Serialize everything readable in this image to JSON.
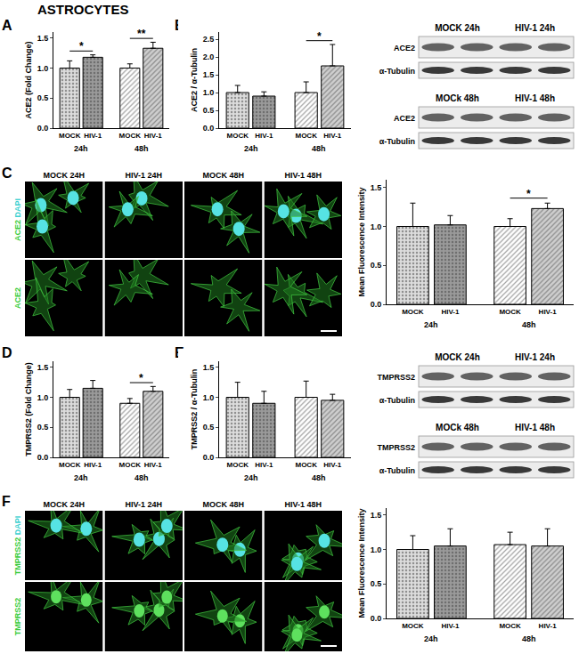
{
  "figure_title": "ASTROCYTES",
  "chart_data": [
    {
      "panel": "A",
      "type": "bar",
      "y_label": "ACE2 (Fold Change)",
      "categories": [
        "MOCK",
        "HIV-1",
        "MOCK",
        "HIV-1"
      ],
      "groups": [
        "24h",
        "48h"
      ],
      "values": [
        1.0,
        1.18,
        1.0,
        1.33
      ],
      "errors": [
        0.12,
        0.04,
        0.07,
        0.1
      ],
      "colors": [
        "#dcdcdc",
        "#9a9a9a",
        "#ffffff",
        "#cfcfcf"
      ],
      "ylim": [
        0,
        1.6
      ],
      "yticks": [
        {
          "value": 0,
          "label": "0.0"
        },
        {
          "value": 0.5,
          "label": "0.5"
        },
        {
          "value": 1,
          "label": "1.0"
        },
        {
          "value": 1.5,
          "label": "1.5"
        }
      ],
      "significance": [
        {
          "bars": [
            0,
            1
          ],
          "label": "*"
        },
        {
          "bars": [
            2,
            3
          ],
          "label": "**"
        }
      ]
    },
    {
      "panel": "B",
      "type": "bar",
      "y_label": "ACE2 / α-Tubulin",
      "categories": [
        "MOCK",
        "HIV-1",
        "MOCK",
        "HIV-1"
      ],
      "groups": [
        "24h",
        "48h"
      ],
      "values": [
        1.0,
        0.9,
        1.0,
        1.75
      ],
      "errors": [
        0.2,
        0.12,
        0.3,
        0.6
      ],
      "colors": [
        "#dcdcdc",
        "#9a9a9a",
        "#ffffff",
        "#cfcfcf"
      ],
      "ylim": [
        0,
        2.7
      ],
      "yticks": [
        {
          "value": 0,
          "label": "0.0"
        },
        {
          "value": 0.5,
          "label": "0.5"
        },
        {
          "value": 1,
          "label": "1.0"
        },
        {
          "value": 1.5,
          "label": "1.5"
        },
        {
          "value": 2,
          "label": "2.0"
        },
        {
          "value": 2.5,
          "label": "2.5"
        }
      ],
      "significance": [
        {
          "bars": [
            2,
            3
          ],
          "label": "*"
        }
      ]
    },
    {
      "panel": "C",
      "type": "bar",
      "y_label": "Mean Fluorescence Intensity",
      "categories": [
        "MOCK",
        "HIV-1",
        "MOCK",
        "HIV-1"
      ],
      "groups": [
        "24h",
        "48h"
      ],
      "values": [
        1.0,
        1.02,
        1.0,
        1.23
      ],
      "errors": [
        0.3,
        0.12,
        0.1,
        0.07
      ],
      "colors": [
        "#dcdcdc",
        "#9a9a9a",
        "#ffffff",
        "#cfcfcf"
      ],
      "ylim": [
        0,
        1.6
      ],
      "yticks": [
        {
          "value": 0,
          "label": "0.0"
        },
        {
          "value": 0.5,
          "label": "0.5"
        },
        {
          "value": 1,
          "label": "1.0"
        },
        {
          "value": 1.5,
          "label": "1.5"
        }
      ],
      "significance": [
        {
          "bars": [
            2,
            3
          ],
          "label": "*"
        }
      ]
    },
    {
      "panel": "D",
      "type": "bar",
      "y_label": "TMPRSS2 (Fold Change)",
      "categories": [
        "MOCK",
        "HIV-1",
        "MOCK",
        "HIV-1"
      ],
      "groups": [
        "24h",
        "48h"
      ],
      "values": [
        1.0,
        1.15,
        0.9,
        1.1
      ],
      "errors": [
        0.13,
        0.13,
        0.08,
        0.08
      ],
      "colors": [
        "#dcdcdc",
        "#9a9a9a",
        "#ffffff",
        "#cfcfcf"
      ],
      "ylim": [
        0,
        1.6
      ],
      "yticks": [
        {
          "value": 0,
          "label": "0.0"
        },
        {
          "value": 0.5,
          "label": "0.5"
        },
        {
          "value": 1,
          "label": "1.0"
        },
        {
          "value": 1.5,
          "label": "1.5"
        }
      ],
      "significance": [
        {
          "bars": [
            2,
            3
          ],
          "label": "*"
        }
      ]
    },
    {
      "panel": "E",
      "type": "bar",
      "y_label": "TMPRSS2 / α-Tubulin",
      "categories": [
        "MOCK",
        "HIV-1",
        "MOCK",
        "HIV-1"
      ],
      "groups": [
        "24h",
        "48h"
      ],
      "values": [
        1.0,
        0.9,
        1.0,
        0.95
      ],
      "errors": [
        0.25,
        0.2,
        0.27,
        0.1
      ],
      "colors": [
        "#dcdcdc",
        "#9a9a9a",
        "#ffffff",
        "#cfcfcf"
      ],
      "ylim": [
        0,
        1.6
      ],
      "yticks": [
        {
          "value": 0,
          "label": "0.0"
        },
        {
          "value": 0.5,
          "label": "0.5"
        },
        {
          "value": 1,
          "label": "1.0"
        },
        {
          "value": 1.5,
          "label": "1.5"
        }
      ],
      "significance": []
    },
    {
      "panel": "F",
      "type": "bar",
      "y_label": "Mean Fluorescence Intensity",
      "categories": [
        "MOCK",
        "HIV-1",
        "MOCK",
        "HIV-1"
      ],
      "groups": [
        "24h",
        "48h"
      ],
      "values": [
        1.0,
        1.05,
        1.07,
        1.05
      ],
      "errors": [
        0.2,
        0.25,
        0.18,
        0.25
      ],
      "colors": [
        "#dcdcdc",
        "#9a9a9a",
        "#ffffff",
        "#cfcfcf"
      ],
      "ylim": [
        0,
        1.6
      ],
      "yticks": [
        {
          "value": 0,
          "label": "0.0"
        },
        {
          "value": 0.5,
          "label": "0.5"
        },
        {
          "value": 1,
          "label": "1.0"
        },
        {
          "value": 1.5,
          "label": "1.5"
        }
      ],
      "significance": []
    }
  ],
  "blots": [
    {
      "rows": [
        {
          "conditions": [
            "MOCK 24h",
            "HIV-1 24h"
          ],
          "bands": [
            "ACE2",
            "α-Tubulin"
          ]
        },
        {
          "conditions": [
            "MOCk 48h",
            "HIV-1 48h"
          ],
          "bands": [
            "ACE2",
            "α-Tubulin"
          ]
        }
      ]
    },
    {
      "rows": [
        {
          "conditions": [
            "MOCK 24h",
            "HIV-1 24h"
          ],
          "bands": [
            "TMPRSS2",
            "α-Tubulin"
          ]
        },
        {
          "conditions": [
            "MOCk 48h",
            "HIV-1 48h"
          ],
          "bands": [
            "TMPRSS2",
            "α-Tubulin"
          ]
        }
      ]
    }
  ],
  "micrographs": [
    {
      "columns": [
        "MOCK 24H",
        "HIV-1 24H",
        "MOCK 48H",
        "HIV-1 48H"
      ],
      "rows": [
        [
          {
            "text": "ACE2",
            "color": "#3ccc3c"
          },
          {
            "text": "DAPI",
            "color": "#3cd0d0"
          }
        ],
        [
          {
            "text": "ACE2",
            "color": "#3ccc3c"
          }
        ]
      ]
    },
    {
      "columns": [
        "MOCK 24H",
        "HIV-1 24H",
        "MOCK 48H",
        "HIV-1 48H"
      ],
      "rows": [
        [
          {
            "text": "TMPRSS2",
            "color": "#3ccc3c"
          },
          {
            "text": "DAPI",
            "color": "#3cd0d0"
          }
        ],
        [
          {
            "text": "TMPRSS2",
            "color": "#3ccc3c"
          }
        ]
      ]
    }
  ]
}
